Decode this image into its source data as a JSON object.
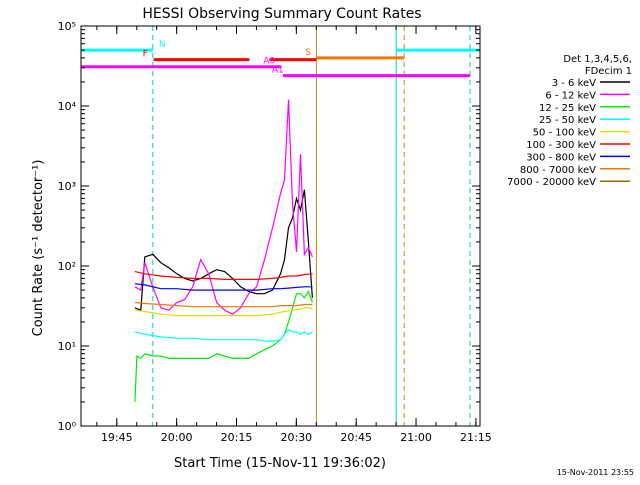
{
  "chart_data": {
    "type": "line",
    "title": "HESSI Observing Summary Count Rates",
    "xlabel": "Start Time (15-Nov-11 19:36:02)",
    "ylabel": "Count Rate (s⁻¹ detector⁻¹)",
    "y_scale": "log",
    "ylim": [
      1,
      100000
    ],
    "xlim_min": [
      0,
      100
    ],
    "x_tick_labels": [
      "19:45",
      "20:00",
      "20:15",
      "20:30",
      "20:45",
      "21:00",
      "21:15"
    ],
    "x_tick_positions_min": [
      8.97,
      23.97,
      38.97,
      53.97,
      68.97,
      83.97,
      98.97
    ],
    "y_tick_labels": [
      "10⁰",
      "10¹",
      "10²",
      "10³",
      "10⁴",
      "10⁵"
    ],
    "grid": false,
    "legend_position": "right",
    "legend_title": [
      "Det 1,3,4,5,6,",
      "FDecim 1"
    ],
    "legend": [
      {
        "label": "3 - 6 keV",
        "color": "#000000"
      },
      {
        "label": "6 - 12 keV",
        "color": "#ff00ff"
      },
      {
        "label": "12 - 25 keV",
        "color": "#00ee00"
      },
      {
        "label": "25 - 50 keV",
        "color": "#00ffff"
      },
      {
        "label": "50 - 100 keV",
        "color": "#dddd00"
      },
      {
        "label": "100 - 300 keV",
        "color": "#ff0000"
      },
      {
        "label": "300 - 800 keV",
        "color": "#0000ff"
      },
      {
        "label": "800 - 7000 keV",
        "color": "#ee7700"
      },
      {
        "label": "7000 - 20000 keV",
        "color": "#996600"
      }
    ],
    "series": [
      {
        "name": "3 - 6 keV",
        "color": "#000000",
        "x": [
          13.5,
          15,
          16,
          18,
          20,
          22,
          24,
          26,
          28,
          30,
          32,
          34,
          36,
          38,
          40,
          42,
          44,
          46,
          48,
          50,
          51,
          52,
          53,
          54,
          55,
          56,
          57,
          58
        ],
        "y": [
          30,
          28,
          130,
          140,
          110,
          95,
          80,
          70,
          65,
          70,
          80,
          90,
          85,
          70,
          55,
          48,
          45,
          45,
          50,
          80,
          120,
          300,
          400,
          700,
          500,
          900,
          200,
          40
        ]
      },
      {
        "name": "6 - 12 keV",
        "color": "#ff00ff",
        "x": [
          13.5,
          15,
          16,
          18,
          20,
          22,
          24,
          26,
          28,
          30,
          32,
          34,
          36,
          38,
          40,
          42,
          44,
          46,
          48,
          50,
          51,
          52,
          53,
          54,
          55,
          56,
          57,
          58
        ],
        "y": [
          55,
          50,
          110,
          55,
          30,
          28,
          35,
          38,
          55,
          120,
          80,
          35,
          28,
          25,
          30,
          45,
          55,
          120,
          300,
          800,
          1200,
          12000,
          600,
          150,
          2500,
          140,
          170,
          130
        ]
      },
      {
        "name": "12 - 25 keV",
        "color": "#00ee00",
        "x": [
          13.5,
          14,
          15,
          16,
          18,
          20,
          22,
          24,
          26,
          28,
          30,
          32,
          34,
          36,
          38,
          40,
          42,
          44,
          46,
          48,
          50,
          51,
          52,
          53,
          54,
          55,
          56,
          57,
          58
        ],
        "y": [
          2,
          7.5,
          7,
          8,
          7.5,
          7.5,
          7,
          7,
          7,
          7,
          7,
          7,
          8,
          7.5,
          7,
          7,
          7,
          8,
          9,
          10,
          12,
          14,
          20,
          30,
          45,
          45,
          40,
          48,
          35
        ]
      },
      {
        "name": "25 - 50 keV",
        "color": "#00ffff",
        "x": [
          13.5,
          16,
          20,
          24,
          28,
          32,
          36,
          40,
          44,
          46,
          48,
          50,
          51,
          52,
          53,
          54,
          55,
          56,
          57,
          58
        ],
        "y": [
          15,
          14,
          13,
          12.5,
          12.5,
          12,
          12,
          12,
          12,
          11.5,
          11.5,
          12,
          14,
          16,
          15,
          15,
          14,
          15,
          14,
          15
        ]
      },
      {
        "name": "50 - 100 keV",
        "color": "#dddd00",
        "x": [
          13.5,
          16,
          20,
          24,
          28,
          32,
          36,
          40,
          44,
          48,
          51,
          53,
          55,
          56,
          57,
          58
        ],
        "y": [
          28,
          27,
          25,
          24,
          24,
          24,
          24,
          24,
          24,
          25,
          27,
          28,
          29,
          30,
          30,
          29
        ]
      },
      {
        "name": "100 - 300 keV",
        "color": "#ff0000",
        "x": [
          13.5,
          16,
          20,
          24,
          28,
          32,
          36,
          40,
          44,
          48,
          50,
          52,
          54,
          56,
          58
        ],
        "y": [
          85,
          80,
          75,
          72,
          70,
          70,
          68,
          68,
          68,
          70,
          72,
          75,
          75,
          78,
          80
        ]
      },
      {
        "name": "300 - 800 keV",
        "color": "#0000ff",
        "x": [
          13.5,
          16,
          20,
          24,
          28,
          32,
          36,
          40,
          44,
          48,
          50,
          52,
          54,
          56,
          58
        ],
        "y": [
          60,
          58,
          52,
          52,
          50,
          50,
          50,
          50,
          50,
          52,
          52,
          53,
          54,
          55,
          55
        ]
      },
      {
        "name": "800 - 7000 keV",
        "color": "#ee7700",
        "x": [
          13.5,
          16,
          20,
          24,
          28,
          32,
          36,
          40,
          44,
          48,
          50,
          52,
          54,
          56,
          58
        ],
        "y": [
          35,
          34,
          33,
          32,
          31,
          31,
          31,
          31,
          31,
          31,
          32,
          32,
          32,
          33,
          33
        ]
      }
    ],
    "vertical_lines": [
      {
        "x_min": 18.0,
        "color": "#00cccc",
        "style": "dashed"
      },
      {
        "x_min": 59.0,
        "color": "#cc8800",
        "style": "solid"
      },
      {
        "x_min": 79.0,
        "color": "#00cccc",
        "style": "solid"
      },
      {
        "x_min": 81.0,
        "color": "#ee7700",
        "style": "dashed"
      },
      {
        "x_min": 97.5,
        "color": "#00cccc",
        "style": "dashed"
      }
    ],
    "flag_bars": [
      {
        "label": "N",
        "color": "#00ffff",
        "segments": [
          [
            0,
            18.0
          ],
          [
            79.0,
            100
          ]
        ],
        "y": 50000
      },
      {
        "label": "S",
        "color": "#ee7700",
        "segments": [
          [
            59.0,
            81.0
          ]
        ],
        "y": 40000
      },
      {
        "label": "F",
        "color": "#ff0000",
        "segments": [
          [
            18.2,
            42.2
          ],
          [
            47.2,
            59.0
          ]
        ],
        "y": 38000
      },
      {
        "label": "A0",
        "color": "#ff00ff",
        "segments": [
          [
            0,
            50.2
          ]
        ],
        "y": 31000
      },
      {
        "label": "A1",
        "color": "#ff00ff",
        "segments": [
          [
            50.6,
            97.5
          ]
        ],
        "y": 24000
      }
    ]
  },
  "footer": {
    "timestamp": "15-Nov-2011 23:55"
  }
}
